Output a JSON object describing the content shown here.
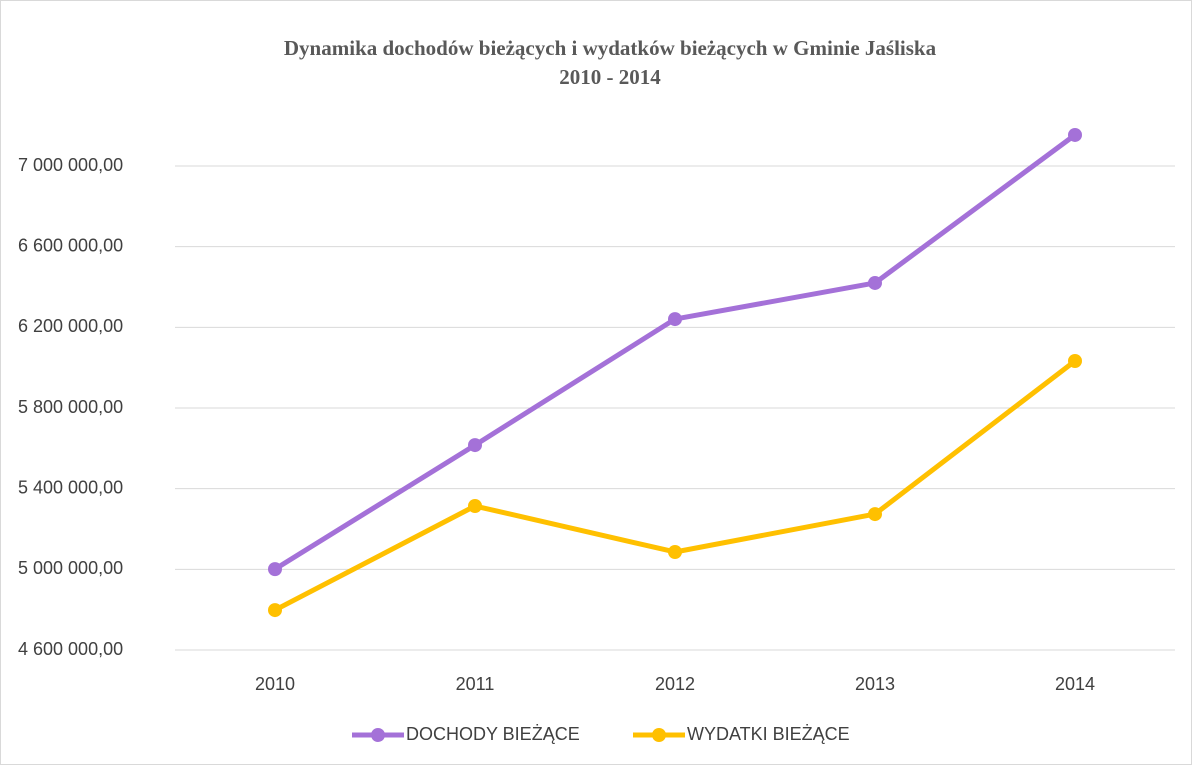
{
  "chart_data": {
    "type": "line",
    "title": [
      "Dynamika dochodów bieżących i wydatków bieżących w Gminie Jaśliska",
      "2010 - 2014"
    ],
    "categories": [
      "2010",
      "2011",
      "2012",
      "2013",
      "2014"
    ],
    "series": [
      {
        "name": "DOCHODY BIEŻĄCE",
        "color": "#a471d8",
        "values": [
          5001000,
          5616000,
          6241000,
          6420000,
          7154000
        ]
      },
      {
        "name": "WYDATKI BIEŻĄCE",
        "color": "#ffc000",
        "values": [
          4798000,
          5314000,
          5086000,
          5274000,
          6033000
        ]
      }
    ],
    "ylim": [
      4600000,
      7200000
    ],
    "yticks": [
      {
        "value": 4600000,
        "label": "4 600 000,00"
      },
      {
        "value": 5000000,
        "label": "5 000 000,00"
      },
      {
        "value": 5400000,
        "label": "5 400 000,00"
      },
      {
        "value": 5800000,
        "label": "5 800 000,00"
      },
      {
        "value": 6200000,
        "label": "6 200 000,00"
      },
      {
        "value": 6600000,
        "label": "6 600 000,00"
      },
      {
        "value": 7000000,
        "label": "7 000 000,00"
      }
    ],
    "grid": true,
    "legend": "bottom"
  }
}
